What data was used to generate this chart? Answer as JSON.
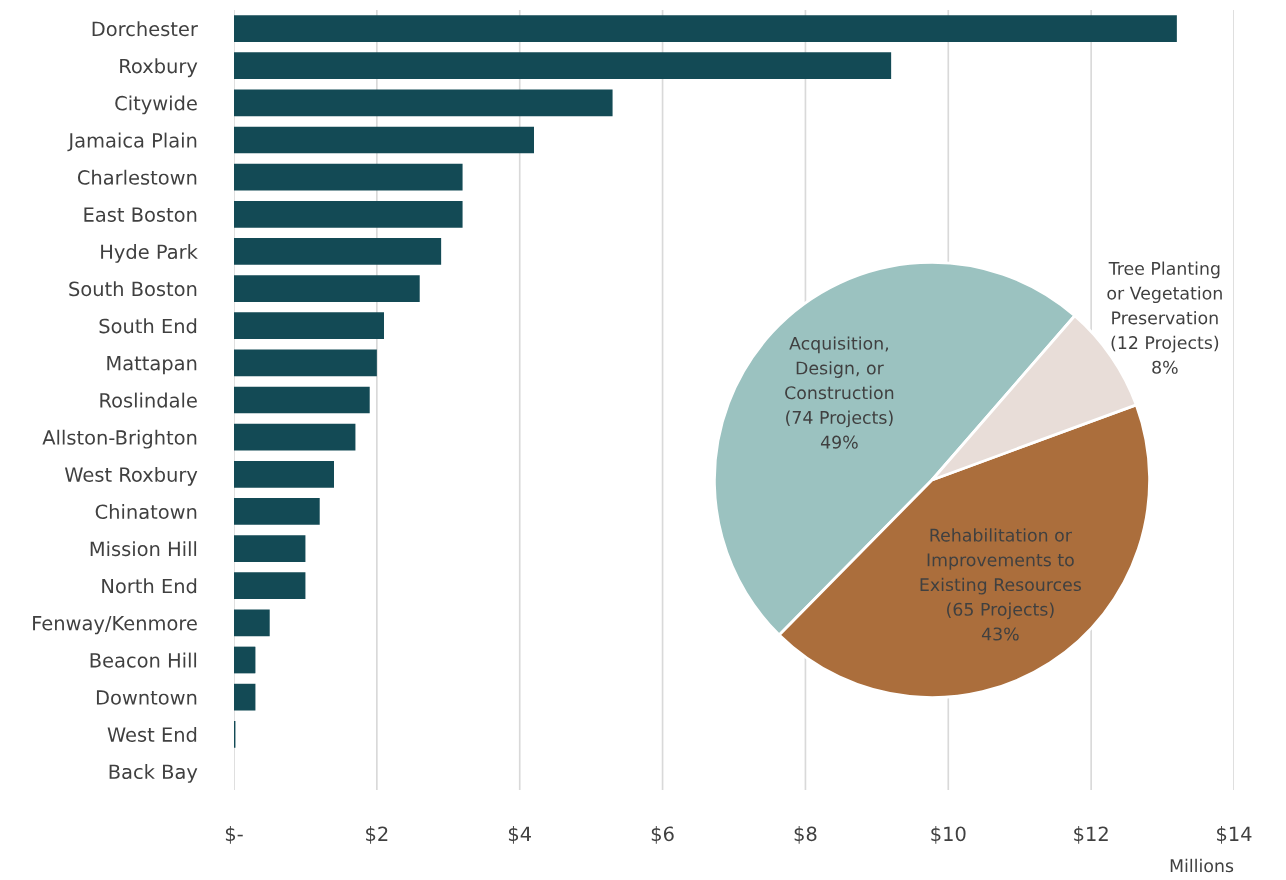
{
  "chart_data": [
    {
      "type": "bar",
      "orientation": "horizontal",
      "xlabel": "Millions",
      "categories": [
        "Dorchester",
        "Roxbury",
        "Citywide",
        "Jamaica Plain",
        "Charlestown",
        "East Boston",
        "Hyde Park",
        "South Boston",
        "South End",
        "Mattapan",
        "Roslindale",
        "Allston-Brighton",
        "West Roxbury",
        "Chinatown",
        "Mission Hill",
        "North End",
        "Fenway/Kenmore",
        "Beacon Hill",
        "Downtown",
        "West End",
        "Back Bay"
      ],
      "values": [
        13.2,
        9.2,
        5.3,
        4.2,
        3.2,
        3.2,
        2.9,
        2.6,
        2.1,
        2.0,
        1.9,
        1.7,
        1.4,
        1.2,
        1.0,
        1.0,
        0.5,
        0.3,
        0.3,
        0.02,
        0
      ],
      "color": "#134a55",
      "xlim": [
        0,
        14
      ],
      "xticks": [
        {
          "value": 0,
          "label": "$-"
        },
        {
          "value": 2,
          "label": "$2"
        },
        {
          "value": 4,
          "label": "$4"
        },
        {
          "value": 6,
          "label": "$6"
        },
        {
          "value": 8,
          "label": "$8"
        },
        {
          "value": 10,
          "label": "$10"
        },
        {
          "value": 12,
          "label": "$12"
        },
        {
          "value": 14,
          "label": "$14"
        }
      ],
      "grid": "x",
      "legend": false
    },
    {
      "type": "pie",
      "categories": [
        "Acquisition,\nDesign, or\nConstruction\n(74 Projects)",
        "Rehabilitation or\nImprovements to\nExisting Resources\n(65 Projects)",
        "Tree Planting\nor Vegetation\nPreservation\n(12 Projects)"
      ],
      "values": [
        49,
        43,
        8
      ],
      "value_labels": [
        "49%",
        "43%",
        "8%"
      ],
      "colors": [
        "#9bc2c0",
        "#ab6e3c",
        "#e8ddd8"
      ],
      "legend": false
    }
  ]
}
